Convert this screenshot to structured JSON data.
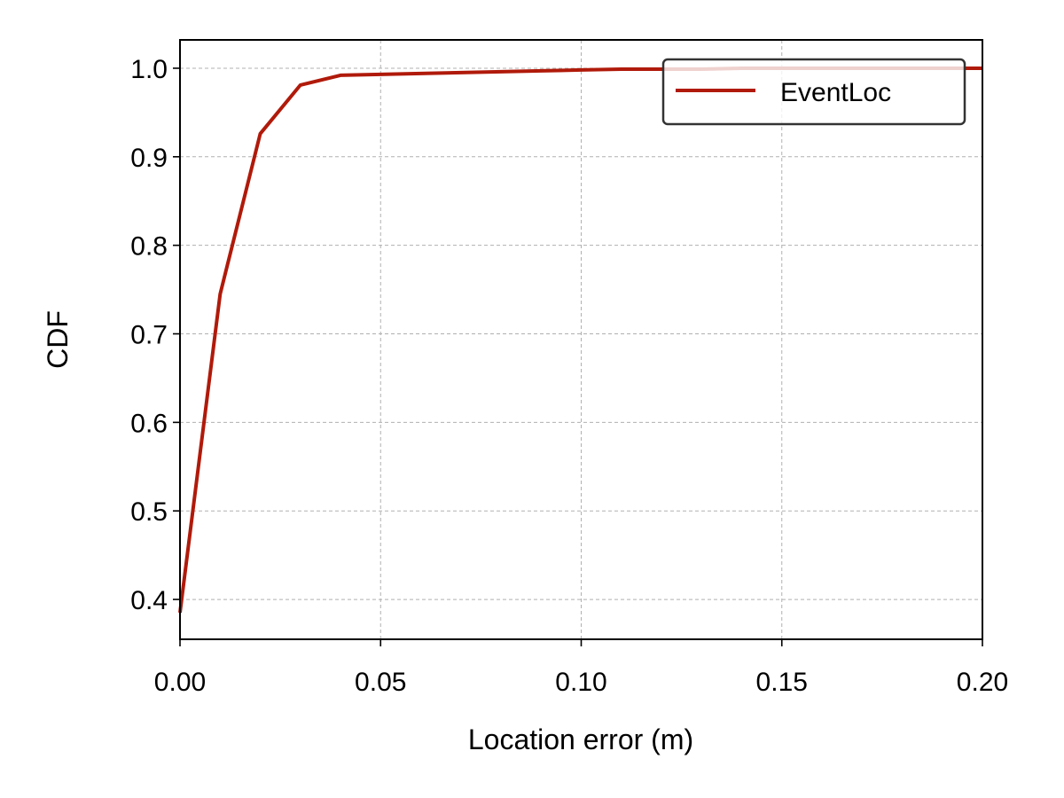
{
  "chart_data": {
    "type": "line",
    "xlabel": "Location error (m)",
    "ylabel": "CDF",
    "xlim": [
      0.0,
      0.2
    ],
    "ylim": [
      0.355,
      1.032
    ],
    "xticks": [
      "0.00",
      "0.05",
      "0.10",
      "0.15",
      "0.20"
    ],
    "xtick_values": [
      0.0,
      0.05,
      0.1,
      0.15,
      0.2
    ],
    "yticks": [
      "0.4",
      "0.5",
      "0.6",
      "0.7",
      "0.8",
      "0.9",
      "1.0"
    ],
    "ytick_values": [
      0.4,
      0.5,
      0.6,
      0.7,
      0.8,
      0.9,
      1.0
    ],
    "grid": true,
    "legend_position": "top-right",
    "series": [
      {
        "name": "EventLoc",
        "color": "#b01a0a",
        "x": [
          0.0,
          0.01,
          0.02,
          0.03,
          0.04,
          0.05,
          0.06,
          0.07,
          0.08,
          0.09,
          0.1,
          0.11,
          0.12,
          0.13,
          0.14,
          0.15,
          0.16,
          0.17,
          0.18,
          0.19,
          0.2
        ],
        "y": [
          0.385,
          0.745,
          0.926,
          0.981,
          0.992,
          0.993,
          0.994,
          0.995,
          0.996,
          0.997,
          0.998,
          0.999,
          0.999,
          0.999,
          1.0,
          1.0,
          1.0,
          1.0,
          1.0,
          1.0,
          1.0
        ]
      }
    ]
  }
}
